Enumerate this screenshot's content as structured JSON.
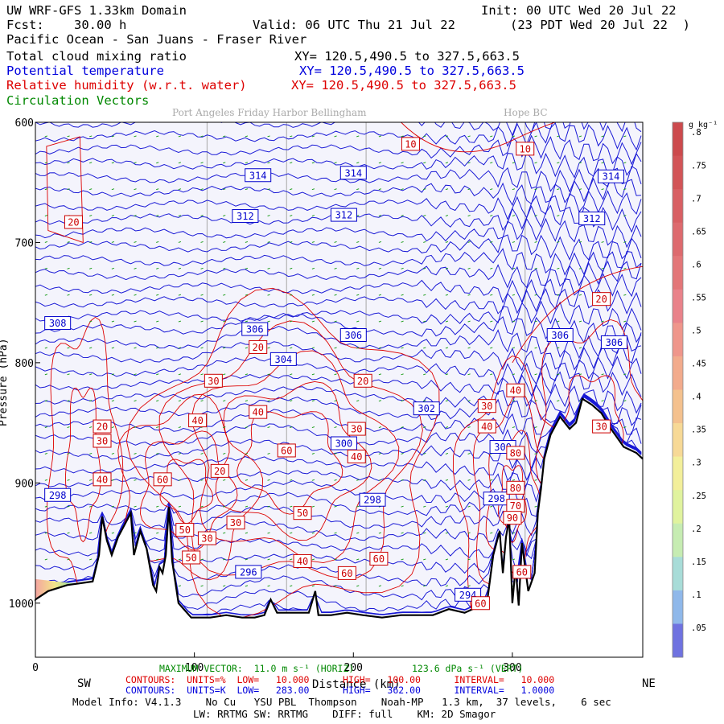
{
  "header": {
    "title": "UW WRF-GFS 1.33km Domain",
    "init": "Init: 00 UTC Wed 20 Jul 22",
    "fcst_label": "Fcst:",
    "fcst_value": "30.00 h",
    "valid": "Valid: 06 UTC Thu 21 Jul 22",
    "valid_local": "(23 PDT Wed 20 Jul 22  )",
    "region": "Pacific Ocean - San Juans - Fraser River"
  },
  "fields": [
    {
      "name": "Total cloud mixing ratio",
      "xy": "XY= 120.5,490.5 to 327.5,663.5",
      "color": "#000000"
    },
    {
      "name": "Potential temperature",
      "xy": "XY= 120.5,490.5 to 327.5,663.5",
      "color": "#0000dd"
    },
    {
      "name": "Relative humidity (w.r.t. water)",
      "xy": "XY= 120.5,490.5 to 327.5,663.5",
      "color": "#dd0000"
    },
    {
      "name": "Circulation Vectors",
      "xy": "",
      "color": "#008800"
    }
  ],
  "locations": "Port Angeles Friday Harbor Bellingham",
  "location_right": "Hope BC",
  "ends": {
    "left": "SW",
    "right": "NE"
  },
  "footer": {
    "max_vector": "MAXIMUM VECTOR:  11.0 m s⁻¹ (HORIZ)",
    "max_vector_vert": "123.6 dPa s⁻¹ (VERT)",
    "contours_red": "CONTOURS:  UNITS=%  LOW=   10.000      HIGH=   100.00      INTERVAL=   10.000",
    "contours_blue": "CONTOURS:  UNITS=K  LOW=   283.00      HIGH=   362.00      INTERVAL=   1.0000",
    "model_info": "Model Info: V4.1.3    No Cu   YSU PBL  Thompson    Noah-MP   1.3 km,  37 levels,    6 sec",
    "physics": "LW: RRTMG SW: RRTMG    DIFF: full    KM: 2D Smagor"
  },
  "chart_data": {
    "type": "cross-section",
    "xlabel": "Distance (km)",
    "ylabel": "Pressure (hPa)",
    "x_ticks": [
      0,
      100,
      200,
      300
    ],
    "xlim": [
      0,
      382
    ],
    "y_ticks": [
      600,
      700,
      800,
      900,
      1000
    ],
    "ylim": [
      600,
      1045
    ],
    "grid_x": [
      108,
      158,
      208,
      308
    ],
    "colorbar": {
      "units": "g kg⁻¹",
      "ticks": [
        ".05",
        ".1",
        ".15",
        ".2",
        ".25",
        ".3",
        ".35",
        ".4",
        ".45",
        ".5",
        ".55",
        ".6",
        ".65",
        ".7",
        ".75",
        ".8"
      ]
    },
    "theta_labels": [
      {
        "v": "314",
        "x": 140,
        "p": 644
      },
      {
        "v": "314",
        "x": 200,
        "p": 642
      },
      {
        "v": "314",
        "x": 362,
        "p": 645
      },
      {
        "v": "312",
        "x": 132,
        "p": 678
      },
      {
        "v": "312",
        "x": 194,
        "p": 677
      },
      {
        "v": "312",
        "x": 350,
        "p": 680
      },
      {
        "v": "308",
        "x": 14,
        "p": 767
      },
      {
        "v": "306",
        "x": 138,
        "p": 772
      },
      {
        "v": "306",
        "x": 200,
        "p": 777
      },
      {
        "v": "306",
        "x": 330,
        "p": 777
      },
      {
        "v": "306",
        "x": 364,
        "p": 783
      },
      {
        "v": "304",
        "x": 156,
        "p": 797
      },
      {
        "v": "302",
        "x": 246,
        "p": 838
      },
      {
        "v": "300",
        "x": 194,
        "p": 867
      },
      {
        "v": "300",
        "x": 294,
        "p": 870
      },
      {
        "v": "298",
        "x": 14,
        "p": 910
      },
      {
        "v": "298",
        "x": 212,
        "p": 914
      },
      {
        "v": "298",
        "x": 290,
        "p": 913
      },
      {
        "v": "296",
        "x": 134,
        "p": 974
      },
      {
        "v": "294",
        "x": 272,
        "p": 993
      }
    ],
    "rh_labels": [
      {
        "v": "10",
        "x": 236,
        "p": 618
      },
      {
        "v": "10",
        "x": 308,
        "p": 622
      },
      {
        "v": "20",
        "x": 24,
        "p": 683
      },
      {
        "v": "20",
        "x": 356,
        "p": 747
      },
      {
        "v": "20",
        "x": 140,
        "p": 787
      },
      {
        "v": "20",
        "x": 206,
        "p": 815
      },
      {
        "v": "20",
        "x": 42,
        "p": 853
      },
      {
        "v": "20",
        "x": 116,
        "p": 890
      },
      {
        "v": "30",
        "x": 112,
        "p": 815
      },
      {
        "v": "30",
        "x": 284,
        "p": 836
      },
      {
        "v": "30",
        "x": 42,
        "p": 865
      },
      {
        "v": "30",
        "x": 202,
        "p": 855
      },
      {
        "v": "30",
        "x": 126,
        "p": 933
      },
      {
        "v": "30",
        "x": 108,
        "p": 946
      },
      {
        "v": "30",
        "x": 356,
        "p": 853
      },
      {
        "v": "40",
        "x": 42,
        "p": 897
      },
      {
        "v": "40",
        "x": 102,
        "p": 848
      },
      {
        "v": "40",
        "x": 140,
        "p": 841
      },
      {
        "v": "40",
        "x": 302,
        "p": 823
      },
      {
        "v": "40",
        "x": 284,
        "p": 853
      },
      {
        "v": "40",
        "x": 202,
        "p": 878
      },
      {
        "v": "40",
        "x": 168,
        "p": 965
      },
      {
        "v": "50",
        "x": 168,
        "p": 925
      },
      {
        "v": "50",
        "x": 94,
        "p": 939
      },
      {
        "v": "50",
        "x": 98,
        "p": 962
      },
      {
        "v": "60",
        "x": 158,
        "p": 873
      },
      {
        "v": "60",
        "x": 80,
        "p": 897
      },
      {
        "v": "60",
        "x": 216,
        "p": 963
      },
      {
        "v": "60",
        "x": 196,
        "p": 975
      },
      {
        "v": "60",
        "x": 280,
        "p": 1000
      },
      {
        "v": "70",
        "x": 302,
        "p": 919
      },
      {
        "v": "80",
        "x": 302,
        "p": 904
      },
      {
        "v": "90",
        "x": 300,
        "p": 929
      },
      {
        "v": "80",
        "x": 302,
        "p": 875
      },
      {
        "v": "60",
        "x": 306,
        "p": 974
      }
    ],
    "terrain_profile": [
      [
        0,
        997
      ],
      [
        8,
        990
      ],
      [
        20,
        985
      ],
      [
        36,
        982
      ],
      [
        40,
        960
      ],
      [
        42,
        928
      ],
      [
        45,
        948
      ],
      [
        48,
        960
      ],
      [
        52,
        945
      ],
      [
        56,
        935
      ],
      [
        60,
        925
      ],
      [
        62,
        960
      ],
      [
        66,
        940
      ],
      [
        70,
        955
      ],
      [
        74,
        985
      ],
      [
        76,
        990
      ],
      [
        78,
        970
      ],
      [
        80,
        975
      ],
      [
        82,
        960
      ],
      [
        84,
        920
      ],
      [
        86,
        965
      ],
      [
        90,
        1000
      ],
      [
        98,
        1012
      ],
      [
        110,
        1012
      ],
      [
        120,
        1010
      ],
      [
        130,
        1012
      ],
      [
        138,
        1012
      ],
      [
        144,
        1010
      ],
      [
        148,
        997
      ],
      [
        152,
        1008
      ],
      [
        160,
        1008
      ],
      [
        172,
        1008
      ],
      [
        176,
        990
      ],
      [
        178,
        1010
      ],
      [
        186,
        1010
      ],
      [
        196,
        1008
      ],
      [
        206,
        1010
      ],
      [
        218,
        1012
      ],
      [
        230,
        1010
      ],
      [
        240,
        1010
      ],
      [
        250,
        1010
      ],
      [
        260,
        1005
      ],
      [
        270,
        1008
      ],
      [
        280,
        1002
      ],
      [
        284,
        1000
      ],
      [
        288,
        960
      ],
      [
        292,
        940
      ],
      [
        294,
        975
      ],
      [
        296,
        945
      ],
      [
        298,
        930
      ],
      [
        300,
        1000
      ],
      [
        302,
        970
      ],
      [
        304,
        1002
      ],
      [
        306,
        950
      ],
      [
        310,
        990
      ],
      [
        314,
        975
      ],
      [
        316,
        925
      ],
      [
        318,
        905
      ],
      [
        320,
        880
      ],
      [
        324,
        860
      ],
      [
        330,
        845
      ],
      [
        336,
        855
      ],
      [
        340,
        850
      ],
      [
        344,
        830
      ],
      [
        350,
        835
      ],
      [
        356,
        842
      ],
      [
        362,
        855
      ],
      [
        370,
        870
      ],
      [
        378,
        875
      ],
      [
        382,
        880
      ]
    ]
  }
}
